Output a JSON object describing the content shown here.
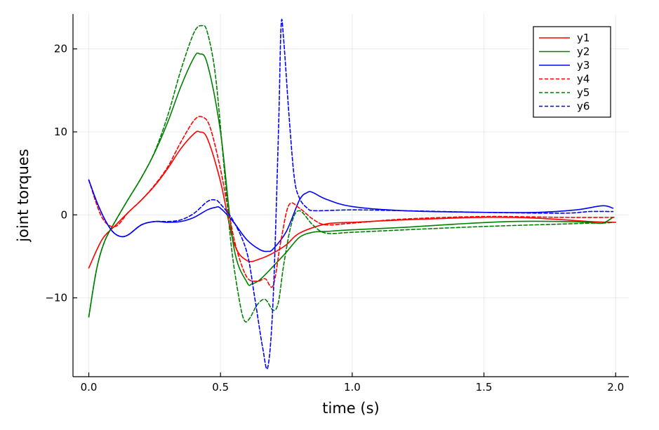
{
  "chart_data": {
    "type": "line",
    "title": "",
    "xlabel": "time (s)",
    "ylabel": "joint torques",
    "xlim": [
      -0.06,
      2.05
    ],
    "ylim": [
      -19.5,
      24.2
    ],
    "xticks": [
      0.0,
      0.5,
      1.0,
      1.5,
      2.0
    ],
    "xtick_labels": [
      "0.0",
      "0.5",
      "1.0",
      "1.5",
      "2.0"
    ],
    "yticks": [
      -10,
      0,
      10,
      20
    ],
    "ytick_labels": [
      "−10",
      "0",
      "10",
      "20"
    ],
    "grid": true,
    "legend_position": "top-right",
    "series": [
      {
        "name": "y1",
        "color": "#ff0000",
        "dash": "solid",
        "x": [
          0,
          0.05,
          0.1,
          0.15,
          0.2,
          0.25,
          0.3,
          0.35,
          0.4,
          0.42,
          0.45,
          0.5,
          0.55,
          0.6,
          0.65,
          0.7,
          0.75,
          0.8,
          0.9,
          1.0,
          1.2,
          1.5,
          1.7,
          1.9,
          2.0
        ],
        "y": [
          -6.4,
          -3.0,
          -1.3,
          0.3,
          1.8,
          3.5,
          5.6,
          8.0,
          9.8,
          10.0,
          9.2,
          4.0,
          -3.3,
          -5.5,
          -5.3,
          -4.6,
          -3.6,
          -2.2,
          -1.1,
          -0.9,
          -0.6,
          -0.3,
          -0.4,
          -0.8,
          -0.9
        ]
      },
      {
        "name": "y2",
        "color": "#008000",
        "dash": "solid",
        "x": [
          0,
          0.03,
          0.06,
          0.1,
          0.15,
          0.2,
          0.25,
          0.3,
          0.35,
          0.4,
          0.42,
          0.45,
          0.5,
          0.55,
          0.6,
          0.62,
          0.65,
          0.7,
          0.75,
          0.8,
          0.85,
          0.9,
          1.0,
          1.2,
          1.4,
          1.6,
          1.8,
          1.9,
          1.95,
          1.99
        ],
        "y": [
          -12.3,
          -6.5,
          -3.2,
          -0.8,
          1.9,
          4.5,
          7.5,
          11.2,
          15.5,
          19.0,
          19.4,
          18.2,
          10.0,
          -3.8,
          -8.1,
          -8.3,
          -7.8,
          -6.2,
          -4.5,
          -2.7,
          -2.1,
          -2.0,
          -1.8,
          -1.5,
          -1.1,
          -0.8,
          -0.8,
          -0.9,
          -1.0,
          -0.3
        ]
      },
      {
        "name": "y3",
        "color": "#0000ff",
        "dash": "solid",
        "x": [
          0,
          0.03,
          0.06,
          0.09,
          0.12,
          0.15,
          0.2,
          0.25,
          0.3,
          0.35,
          0.4,
          0.45,
          0.48,
          0.5,
          0.55,
          0.6,
          0.65,
          0.68,
          0.7,
          0.75,
          0.8,
          0.83,
          0.85,
          0.9,
          1.0,
          1.2,
          1.5,
          1.7,
          1.85,
          1.95,
          1.99
        ],
        "y": [
          4.2,
          1.6,
          -0.5,
          -2.0,
          -2.6,
          -2.4,
          -1.2,
          -0.8,
          -0.9,
          -0.8,
          -0.3,
          0.6,
          0.9,
          0.8,
          -0.9,
          -3.0,
          -4.2,
          -4.4,
          -4.1,
          -2.0,
          1.8,
          2.7,
          2.7,
          1.9,
          1.0,
          0.5,
          0.3,
          0.3,
          0.6,
          1.1,
          0.8
        ]
      },
      {
        "name": "y4",
        "color": "#ff0000",
        "dash": "dashed",
        "x": [
          0,
          0.05,
          0.1,
          0.15,
          0.2,
          0.25,
          0.3,
          0.35,
          0.4,
          0.43,
          0.46,
          0.5,
          0.53,
          0.56,
          0.6,
          0.64,
          0.67,
          0.7,
          0.73,
          0.76,
          0.8,
          0.85,
          0.9,
          1.0,
          1.2,
          1.5,
          1.8,
          2.0
        ],
        "y": [
          4.2,
          -0.3,
          -1.4,
          0.3,
          1.8,
          3.6,
          5.8,
          8.8,
          11.4,
          11.8,
          10.6,
          5.5,
          0.5,
          -4.0,
          -7.5,
          -8.0,
          -7.7,
          -8.5,
          -3.0,
          1.2,
          0.8,
          -0.5,
          -1.2,
          -1.0,
          -0.5,
          -0.2,
          -0.3,
          -0.3
        ]
      },
      {
        "name": "y5",
        "color": "#008000",
        "dash": "dashed",
        "x": [
          0,
          0.03,
          0.06,
          0.1,
          0.15,
          0.2,
          0.25,
          0.3,
          0.35,
          0.4,
          0.43,
          0.45,
          0.48,
          0.51,
          0.54,
          0.57,
          0.59,
          0.61,
          0.64,
          0.67,
          0.7,
          0.72,
          0.74,
          0.77,
          0.8,
          0.85,
          0.9,
          1.0,
          1.2,
          1.5,
          1.8,
          1.9,
          1.95,
          1.99
        ],
        "y": [
          -12.3,
          -6.5,
          -3.2,
          -0.8,
          1.9,
          4.5,
          7.6,
          12.0,
          17.5,
          22.0,
          22.8,
          22.0,
          17.0,
          7.0,
          -3.5,
          -10.0,
          -12.7,
          -12.5,
          -10.8,
          -10.2,
          -11.5,
          -10.5,
          -6.0,
          -1.0,
          0.5,
          -1.2,
          -2.2,
          -2.1,
          -1.8,
          -1.4,
          -1.1,
          -1.0,
          -1.0,
          -0.9
        ]
      },
      {
        "name": "y6",
        "color": "#0000ff",
        "dash": "dashed",
        "x": [
          0,
          0.03,
          0.06,
          0.09,
          0.12,
          0.15,
          0.2,
          0.25,
          0.3,
          0.35,
          0.4,
          0.45,
          0.48,
          0.5,
          0.55,
          0.6,
          0.63,
          0.66,
          0.68,
          0.7,
          0.72,
          0.73,
          0.74,
          0.76,
          0.78,
          0.8,
          0.83,
          0.86,
          1.0,
          1.2,
          1.5,
          1.8,
          1.9,
          1.99
        ],
        "y": [
          4.2,
          1.6,
          -0.5,
          -2.0,
          -2.6,
          -2.4,
          -1.2,
          -0.8,
          -0.8,
          -0.6,
          0.2,
          1.6,
          1.8,
          1.3,
          -0.8,
          -4.5,
          -10.0,
          -16.0,
          -18.3,
          -10.0,
          10.0,
          22.8,
          21.0,
          12.0,
          4.5,
          2.0,
          0.8,
          0.5,
          0.6,
          0.5,
          0.3,
          0.2,
          0.4,
          0.4
        ]
      }
    ]
  }
}
